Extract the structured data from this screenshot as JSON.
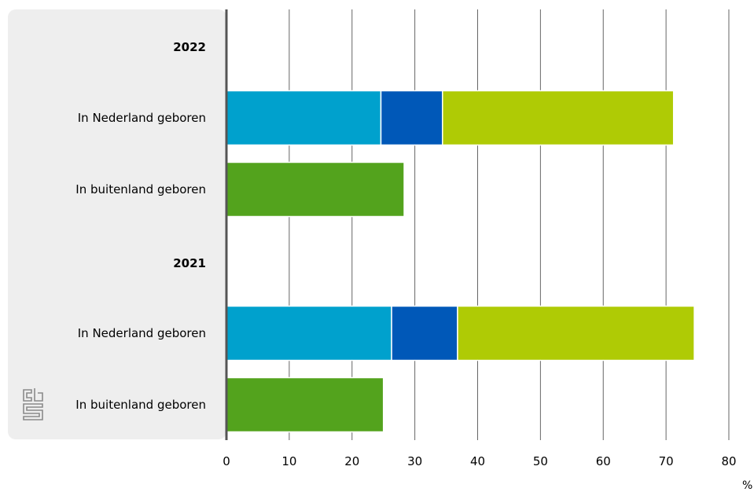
{
  "chart_data": {
    "type": "bar",
    "orientation": "horizontal",
    "stacked": true,
    "rows": [
      {
        "label": "2022",
        "header": true
      },
      {
        "label": "In Nederland geboren",
        "header": false,
        "segments": [
          24.6,
          9.8,
          36.8
        ]
      },
      {
        "label": "In buitenland geboren",
        "header": false,
        "segments": [
          28.3
        ]
      },
      {
        "label": "2021",
        "header": true
      },
      {
        "label": "In Nederland geboren",
        "header": false,
        "segments": [
          26.3,
          10.5,
          37.7
        ]
      },
      {
        "label": "In buitenland geboren",
        "header": false,
        "segments": [
          25.0
        ]
      }
    ],
    "segment_colors": [
      "#00a1cd",
      "#0058b8",
      "#afcb05"
    ],
    "foreign_color": "#53a31d",
    "xlim": [
      0,
      80
    ],
    "xticks": [
      0,
      10,
      20,
      30,
      40,
      50,
      60,
      70,
      80
    ],
    "unit": "%",
    "grid": true
  }
}
